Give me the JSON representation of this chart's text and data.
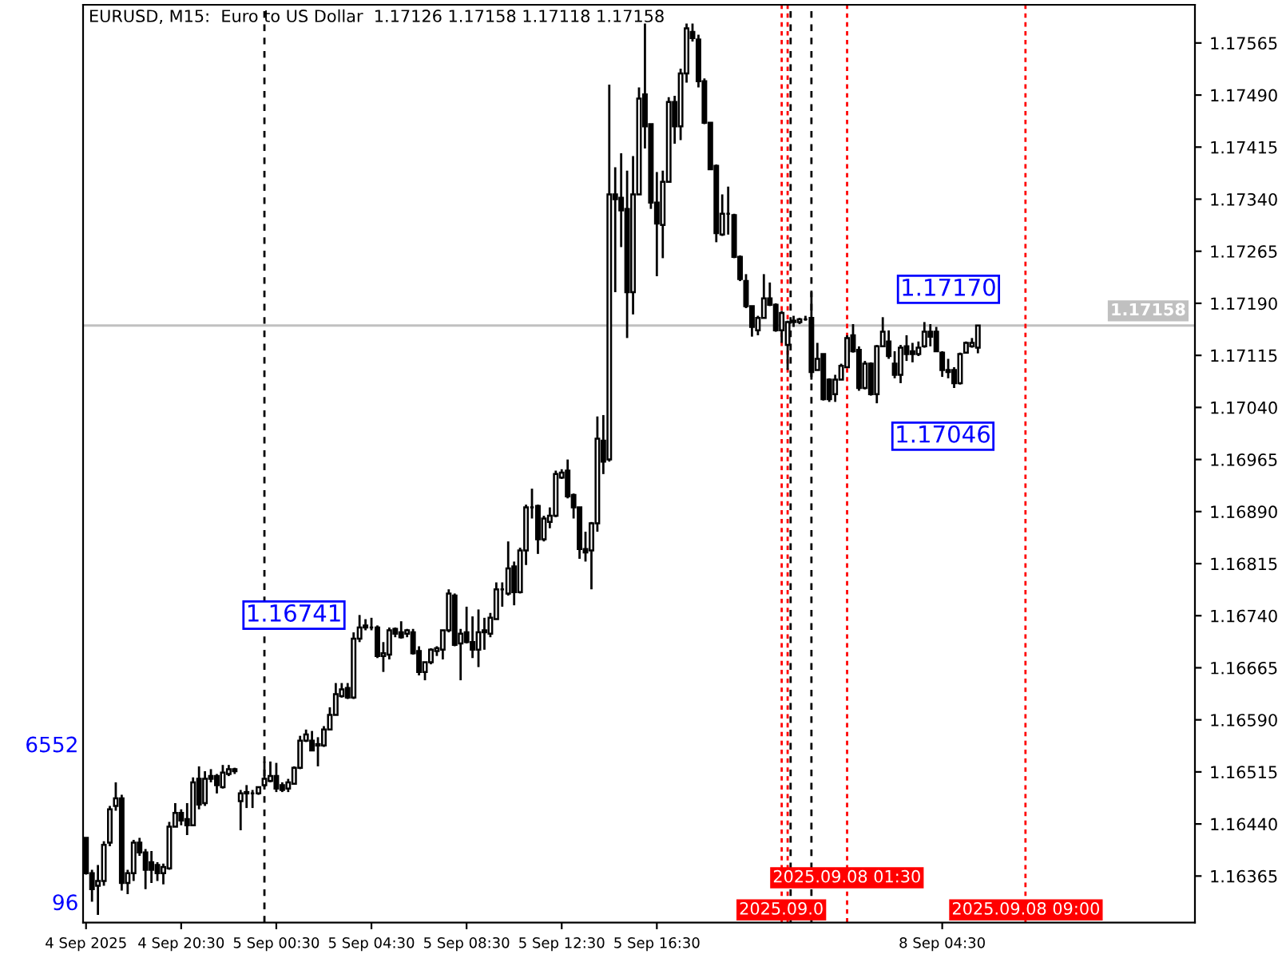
{
  "chart_data": {
    "type": "candlestick",
    "title": "EURUSD, M15:  Euro to US Dollar  1.17126 1.17158 1.17118 1.17158",
    "color": "#000000",
    "categories": [
      "4 Sep 2025",
      null,
      null,
      null,
      null,
      null,
      null,
      null,
      null,
      null,
      null,
      null,
      null,
      null,
      null,
      null,
      "4 Sep 20:30",
      null,
      null,
      null,
      null,
      null,
      null,
      null,
      null,
      null,
      null,
      null,
      null,
      null,
      null,
      null,
      "5 Sep 00:30",
      null,
      null,
      null,
      null,
      null,
      null,
      null,
      null,
      null,
      null,
      null,
      null,
      null,
      null,
      null,
      "5 Sep 04:30",
      null,
      null,
      null,
      null,
      null,
      null,
      null,
      null,
      null,
      null,
      null,
      null,
      null,
      null,
      null,
      "5 Sep 08:30",
      null,
      null,
      null,
      null,
      null,
      null,
      null,
      null,
      null,
      null,
      null,
      null,
      null,
      null,
      null,
      "5 Sep 12:30",
      null,
      null,
      null,
      null,
      null,
      null,
      null,
      null,
      null,
      null,
      null,
      null,
      null,
      null,
      null,
      "5 Sep 16:30",
      null,
      null,
      null,
      null,
      null,
      null,
      null,
      null,
      null,
      null,
      null,
      null,
      null,
      null,
      null,
      null,
      null,
      null,
      null,
      null,
      null,
      null,
      null,
      null,
      null,
      null,
      null,
      null,
      null,
      null,
      null,
      null,
      null,
      null,
      null,
      null,
      null,
      null,
      null,
      null,
      null,
      null,
      null,
      null,
      null,
      null,
      null,
      "8 Sep 04:30",
      null,
      null,
      null,
      null,
      null,
      null,
      null,
      null,
      null,
      null,
      null,
      null,
      null,
      null,
      null,
      null,
      null,
      null,
      null,
      null,
      null,
      null,
      null,
      null,
      null,
      null,
      null,
      null,
      null,
      null,
      null,
      null,
      null,
      null,
      null,
      null,
      null,
      null,
      null,
      null,
      null,
      null
    ],
    "ohlc": [
      [
        1.1642,
        1.1642,
        1.16367,
        1.16369
      ],
      [
        1.16369,
        1.16374,
        1.16328,
        1.16346
      ],
      [
        1.16351,
        1.16381,
        1.16309,
        1.16358
      ],
      [
        1.16358,
        1.16415,
        1.16351,
        1.1641
      ],
      [
        1.16413,
        1.16466,
        1.16408,
        1.16461
      ],
      [
        1.16466,
        1.165,
        1.16459,
        1.16477
      ],
      [
        1.16477,
        1.16482,
        1.16344,
        1.16355
      ],
      [
        1.16355,
        1.16374,
        1.16339,
        1.16369
      ],
      [
        1.16369,
        1.16417,
        1.16358,
        1.16413
      ],
      [
        1.16413,
        1.1642,
        1.16394,
        1.16399
      ],
      [
        1.16399,
        1.16404,
        1.16346,
        1.16374
      ],
      [
        1.16385,
        1.16401,
        1.16355,
        1.16374
      ],
      [
        1.16381,
        1.16385,
        1.16358,
        1.16369
      ],
      [
        1.16369,
        1.16383,
        1.16353,
        1.16378
      ],
      [
        1.16376,
        1.16443,
        1.16374,
        1.16436
      ],
      [
        1.16436,
        1.1647,
        1.16436,
        1.16456
      ],
      [
        1.16456,
        1.16461,
        1.16438,
        1.16445
      ],
      [
        1.16447,
        1.1647,
        1.16424,
        1.16438
      ],
      [
        1.16438,
        1.16507,
        1.16438,
        1.165
      ],
      [
        1.16505,
        1.16523,
        1.16461,
        1.16468
      ],
      [
        1.1647,
        1.16516,
        1.16466,
        1.16505
      ],
      [
        1.16509,
        1.16519,
        1.165,
        1.16505
      ],
      [
        1.16509,
        1.16512,
        1.16484,
        1.16496
      ],
      [
        1.16493,
        1.16525,
        1.16491,
        1.16514
      ],
      [
        1.16512,
        1.16525,
        1.16509,
        1.16519
      ],
      [
        1.16516,
        1.16521,
        1.16512,
        1.16519
      ],
      [
        1.16473,
        1.16489,
        1.16431,
        1.16484
      ],
      [
        1.16484,
        1.16496,
        1.16463,
        1.16486
      ],
      [
        1.16484,
        1.16489,
        1.16463,
        1.16484
      ],
      [
        1.16484,
        1.16493,
        1.16482,
        1.16493
      ],
      [
        1.16496,
        1.1653,
        1.16493,
        1.16505
      ],
      [
        1.16502,
        1.1653,
        1.165,
        1.16509
      ],
      [
        1.16509,
        1.16528,
        1.16486,
        1.16491
      ],
      [
        1.16496,
        1.165,
        1.16486,
        1.16489
      ],
      [
        1.16491,
        1.16505,
        1.16486,
        1.165
      ],
      [
        1.16498,
        1.16523,
        1.16498,
        1.16521
      ],
      [
        1.16521,
        1.16567,
        1.16519,
        1.1656
      ],
      [
        1.1656,
        1.16576,
        1.16558,
        1.16569
      ],
      [
        1.1656,
        1.16574,
        1.16546,
        1.16546
      ],
      [
        1.16555,
        1.16565,
        1.16523,
        1.16553
      ],
      [
        1.16553,
        1.16581,
        1.16551,
        1.16576
      ],
      [
        1.16576,
        1.16608,
        1.16576,
        1.16597
      ],
      [
        1.16597,
        1.16643,
        1.16597,
        1.16627
      ],
      [
        1.16624,
        1.16643,
        1.16622,
        1.16634
      ],
      [
        1.16636,
        1.16643,
        1.1662,
        1.16622
      ],
      [
        1.16622,
        1.16716,
        1.1662,
        1.16707
      ],
      [
        1.16707,
        1.16741,
        1.16702,
        1.16723
      ],
      [
        1.16723,
        1.16735,
        1.16719,
        1.16726
      ],
      [
        1.16723,
        1.16737,
        1.16719,
        1.16723
      ],
      [
        1.16723,
        1.16726,
        1.16679,
        1.16682
      ],
      [
        1.16682,
        1.16702,
        1.16659,
        1.16686
      ],
      [
        1.16684,
        1.16723,
        1.16677,
        1.16719
      ],
      [
        1.16721,
        1.16723,
        1.16709,
        1.16714
      ],
      [
        1.16716,
        1.16732,
        1.16707,
        1.16709
      ],
      [
        1.16714,
        1.16721,
        1.16709,
        1.16719
      ],
      [
        1.16716,
        1.16721,
        1.16684,
        1.16686
      ],
      [
        1.16689,
        1.16696,
        1.16654,
        1.16659
      ],
      [
        1.16659,
        1.16673,
        1.16647,
        1.16673
      ],
      [
        1.16673,
        1.16693,
        1.1667,
        1.16691
      ],
      [
        1.16689,
        1.16696,
        1.16682,
        1.16693
      ],
      [
        1.16691,
        1.16719,
        1.16677,
        1.16719
      ],
      [
        1.16719,
        1.16778,
        1.16716,
        1.16772
      ],
      [
        1.16769,
        1.16772,
        1.16696,
        1.16698
      ],
      [
        1.167,
        1.16721,
        1.16647,
        1.16714
      ],
      [
        1.16716,
        1.16753,
        1.167,
        1.16702
      ],
      [
        1.16702,
        1.16739,
        1.16679,
        1.16691
      ],
      [
        1.16691,
        1.16749,
        1.16666,
        1.16716
      ],
      [
        1.16716,
        1.16737,
        1.16691,
        1.16719
      ],
      [
        1.16714,
        1.16744,
        1.16709,
        1.16737
      ],
      [
        1.16735,
        1.16788,
        1.16735,
        1.16778
      ],
      [
        1.16778,
        1.16788,
        1.16753,
        1.16778
      ],
      [
        1.16772,
        1.16847,
        1.16769,
        1.16808
      ],
      [
        1.16811,
        1.16818,
        1.16755,
        1.16774
      ],
      [
        1.16774,
        1.16838,
        1.16772,
        1.16834
      ],
      [
        1.16834,
        1.169,
        1.16813,
        1.16896
      ],
      [
        1.16896,
        1.16923,
        1.1688,
        1.16896
      ],
      [
        1.16898,
        1.169,
        1.16829,
        1.1685
      ],
      [
        1.1685,
        1.16884,
        1.16847,
        1.1688
      ],
      [
        1.16875,
        1.16896,
        1.16866,
        1.16884
      ],
      [
        1.16884,
        1.16949,
        1.16882,
        1.16944
      ],
      [
        1.16939,
        1.16951,
        1.16937,
        1.16946
      ],
      [
        1.16949,
        1.16965,
        1.16909,
        1.16912
      ],
      [
        1.16914,
        1.16916,
        1.1688,
        1.16896
      ],
      [
        1.16896,
        1.16896,
        1.16822,
        1.16836
      ],
      [
        1.16836,
        1.16861,
        1.16818,
        1.16831
      ],
      [
        1.16834,
        1.16875,
        1.16778,
        1.16873
      ],
      [
        1.16873,
        1.17027,
        1.16861,
        1.16995
      ],
      [
        1.16992,
        1.17029,
        1.16944,
        1.16962
      ],
      [
        1.16965,
        1.17505,
        1.16962,
        1.17347
      ],
      [
        1.17347,
        1.17386,
        1.17206,
        1.1734
      ],
      [
        1.17342,
        1.17406,
        1.17271,
        1.17324
      ],
      [
        1.17326,
        1.17381,
        1.1714,
        1.17206
      ],
      [
        1.17206,
        1.17402,
        1.17174,
        1.17347
      ],
      [
        1.17347,
        1.17501,
        1.17347,
        1.17485
      ],
      [
        1.17491,
        1.17593,
        1.17413,
        1.17445
      ],
      [
        1.17448,
        1.17448,
        1.17326,
        1.17335
      ],
      [
        1.17335,
        1.17379,
        1.17229,
        1.17305
      ],
      [
        1.17303,
        1.17381,
        1.17255,
        1.17365
      ],
      [
        1.17365,
        1.17487,
        1.17365,
        1.1748
      ],
      [
        1.1748,
        1.17489,
        1.1742,
        1.17445
      ],
      [
        1.17445,
        1.17528,
        1.17425,
        1.17521
      ],
      [
        1.17521,
        1.17593,
        1.17508,
        1.17586
      ],
      [
        1.17581,
        1.17593,
        1.17567,
        1.17572
      ],
      [
        1.1757,
        1.17577,
        1.17501,
        1.1751
      ],
      [
        1.1751,
        1.17514,
        1.17448,
        1.1745
      ],
      [
        1.1745,
        1.1745,
        1.17383,
        1.17383
      ],
      [
        1.17388,
        1.1739,
        1.17278,
        1.17291
      ],
      [
        1.17289,
        1.17347,
        1.17287,
        1.17319
      ],
      [
        1.17319,
        1.17358,
        1.17289,
        1.17319
      ],
      [
        1.17317,
        1.17319,
        1.17255,
        1.17257
      ],
      [
        1.17257,
        1.17259,
        1.17222,
        1.17225
      ],
      [
        1.17222,
        1.17232,
        1.17183,
        1.17186
      ],
      [
        1.17186,
        1.17186,
        1.17142,
        1.17156
      ],
      [
        1.17151,
        1.17172,
        1.17144,
        1.17169
      ],
      [
        1.17169,
        1.17232,
        1.17169,
        1.17197
      ],
      [
        1.17197,
        1.1722,
        1.17186,
        1.17188
      ],
      [
        1.17188,
        1.1719,
        1.17149,
        1.17151
      ],
      [
        1.17151,
        1.17179,
        1.17133,
        1.17176
      ],
      [
        1.1713,
        1.17165,
        1.17094,
        1.17163
      ],
      [
        1.17163,
        1.17172,
        1.17156,
        1.17165
      ],
      [
        1.17163,
        1.17169,
        1.1716,
        1.17167
      ],
      [
        1.17167,
        1.17172,
        1.17165,
        1.17167
      ],
      [
        1.17169,
        1.17206,
        1.1708,
        1.17091
      ],
      [
        1.17094,
        1.17133,
        1.17094,
        1.1711
      ],
      [
        1.17117,
        1.17117,
        1.1705,
        1.17052
      ],
      [
        1.1708,
        1.17082,
        1.17048,
        1.17052
      ],
      [
        1.17059,
        1.17087,
        1.17048,
        1.1708
      ],
      [
        1.1708,
        1.17103,
        1.1708,
        1.171
      ],
      [
        1.17098,
        1.17144,
        1.17098,
        1.1714
      ],
      [
        1.17144,
        1.1716,
        1.17119,
        1.17121
      ],
      [
        1.17123,
        1.17128,
        1.17064,
        1.17068
      ],
      [
        1.17068,
        1.17107,
        1.17066,
        1.17103
      ],
      [
        1.17103,
        1.17105,
        1.17057,
        1.17059
      ],
      [
        1.17059,
        1.1713,
        1.17046,
        1.17128
      ],
      [
        1.17128,
        1.1717,
        1.17128,
        1.17149
      ],
      [
        1.17135,
        1.17151,
        1.1711,
        1.17114
      ],
      [
        1.17103,
        1.17121,
        1.17082,
        1.17087
      ],
      [
        1.17087,
        1.1713,
        1.17075,
        1.17126
      ],
      [
        1.17128,
        1.17144,
        1.17107,
        1.17117
      ],
      [
        1.17121,
        1.17133,
        1.17105,
        1.17117
      ],
      [
        1.17117,
        1.17135,
        1.17114,
        1.17126
      ],
      [
        1.17128,
        1.17163,
        1.17126,
        1.17149
      ],
      [
        1.17149,
        1.1716,
        1.17128,
        1.17142
      ],
      [
        1.17149,
        1.17156,
        1.17121,
        1.17121
      ],
      [
        1.17119,
        1.17121,
        1.17084,
        1.17094
      ],
      [
        1.17094,
        1.1711,
        1.17082,
        1.17091
      ],
      [
        1.17094,
        1.17098,
        1.17068,
        1.17075
      ],
      [
        1.17075,
        1.17119,
        1.17073,
        1.17117
      ],
      [
        1.17119,
        1.17135,
        1.17119,
        1.17133
      ],
      [
        1.17128,
        1.1714,
        1.17126,
        1.17133
      ],
      [
        1.17126,
        1.17158,
        1.17118,
        1.17158
      ],
      null,
      null,
      null,
      null,
      null,
      null,
      null,
      null,
      null,
      null,
      null,
      null,
      null,
      null,
      null,
      null,
      null,
      null,
      null,
      null,
      null,
      null,
      null,
      null,
      null,
      null,
      null,
      null,
      null,
      null,
      null,
      null,
      null,
      null,
      null,
      null
    ],
    "ylim": [
      1.16298,
      1.1762
    ],
    "yticks": [
      1.17565,
      {
        "value": 1.1749,
        "label": "1.17490"
      },
      1.17415,
      {
        "value": 1.1734,
        "label": "1.17340"
      },
      1.17265,
      {
        "value": 1.1719,
        "label": "1.17190"
      },
      1.17115,
      {
        "value": 1.1704,
        "label": "1.17040"
      },
      1.16965,
      {
        "value": 1.1689,
        "label": "1.16890"
      },
      1.16815,
      {
        "value": 1.1674,
        "label": "1.16740"
      },
      1.16665,
      {
        "value": 1.1659,
        "label": "1.16590"
      },
      1.16515,
      {
        "value": 1.1644,
        "label": "1.16440"
      },
      1.16365
    ],
    "ref_lines": [
      {
        "axis": "y",
        "value": 1.17158,
        "label": "1.17158",
        "color": "#c0c0c0",
        "line_style": "solid"
      }
    ],
    "annotations": [
      "1.16741",
      "1.17170",
      "1.17046",
      "6552",
      "96",
      "2025.09.0",
      "2025.09.08 01:30",
      "2025.09.08 09:00"
    ]
  }
}
